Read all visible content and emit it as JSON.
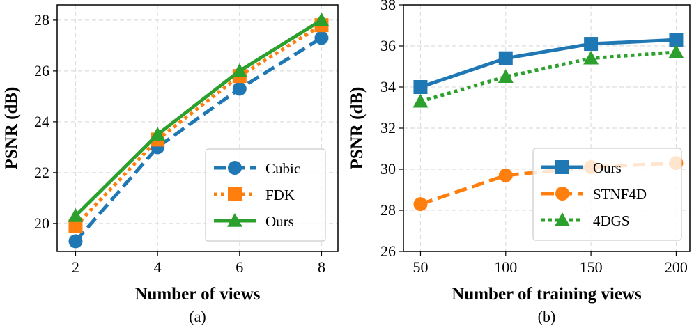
{
  "chart_data": [
    {
      "type": "line",
      "caption": "(a)",
      "xlabel": "Number of views",
      "ylabel": "PSNR (dB)",
      "x": [
        2,
        4,
        6,
        8
      ],
      "xticks": [
        2,
        4,
        6,
        8
      ],
      "xlim": [
        1.55,
        8.4
      ],
      "yticks": [
        20,
        22,
        24,
        26,
        28
      ],
      "ylim": [
        18.9,
        28.6
      ],
      "grid": true,
      "legend_position": "lower-right",
      "series": [
        {
          "name": "Cubic",
          "values": [
            19.3,
            23.0,
            25.3,
            27.3
          ],
          "color": "#1f77b4",
          "marker": "circle",
          "linestyle": "dashed"
        },
        {
          "name": "FDK",
          "values": [
            19.9,
            23.3,
            25.8,
            27.8
          ],
          "color": "#ff7f0e",
          "marker": "square",
          "linestyle": "dotted"
        },
        {
          "name": "Ours",
          "values": [
            20.3,
            23.5,
            26.0,
            28.0
          ],
          "color": "#2ca02c",
          "marker": "triangle",
          "linestyle": "solid"
        }
      ]
    },
    {
      "type": "line",
      "caption": "(b)",
      "xlabel": "Number of training views",
      "ylabel": "PSNR (dB)",
      "x": [
        50,
        100,
        150,
        200
      ],
      "xticks": [
        50,
        100,
        150,
        200
      ],
      "xlim": [
        40,
        208
      ],
      "yticks": [
        26,
        28,
        30,
        32,
        34,
        36,
        38
      ],
      "ylim": [
        26,
        38
      ],
      "grid": true,
      "legend_position": "lower-right",
      "series": [
        {
          "name": "Ours",
          "values": [
            34.0,
            35.4,
            36.1,
            36.3
          ],
          "color": "#1f77b4",
          "marker": "square",
          "linestyle": "solid"
        },
        {
          "name": "STNF4D",
          "values": [
            28.3,
            29.7,
            30.1,
            30.3
          ],
          "color": "#ff7f0e",
          "marker": "circle",
          "linestyle": "dashed"
        },
        {
          "name": "4DGS",
          "values": [
            33.3,
            34.5,
            35.4,
            35.7
          ],
          "color": "#2ca02c",
          "marker": "triangle",
          "linestyle": "dotted"
        }
      ]
    }
  ]
}
